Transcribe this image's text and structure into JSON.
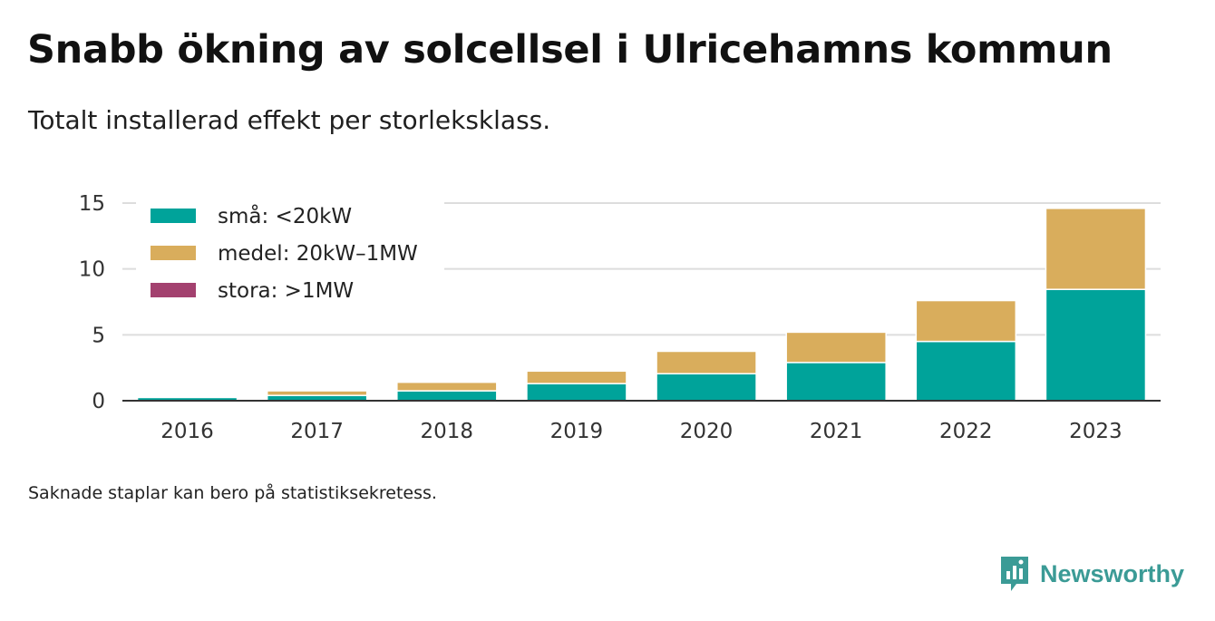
{
  "title": "Snabb ökning av solcellsel i Ulricehamns kommun",
  "subtitle": "Totalt installerad effekt per storleksklass.",
  "footnote": "Saknade staplar kan bero på statistiksekretess.",
  "brand": {
    "name": "Newsworthy",
    "logo_icon": "newsworthy-logo-icon"
  },
  "colors": {
    "sma": "#00a39a",
    "medel": "#d9ad5c",
    "stora": "#a3416f",
    "grid": "#dddddd",
    "axis": "#333333",
    "brand": "#3b9b96"
  },
  "chart_data": {
    "type": "bar",
    "stacked": true,
    "categories": [
      "2016",
      "2017",
      "2018",
      "2019",
      "2020",
      "2021",
      "2022",
      "2023"
    ],
    "series": [
      {
        "name": "små: <20kW",
        "key": "sma",
        "values": [
          0.25,
          0.4,
          0.75,
          1.3,
          2.05,
          2.9,
          4.5,
          8.45
        ]
      },
      {
        "name": "medel: 20kW–1MW",
        "key": "medel",
        "values": [
          0.05,
          0.35,
          0.65,
          0.95,
          1.7,
          2.3,
          3.1,
          6.15
        ]
      },
      {
        "name": "stora: >1MW",
        "key": "stora",
        "values": [
          0,
          0,
          0,
          0,
          0,
          0,
          0,
          0
        ]
      }
    ],
    "yticks": [
      "0",
      "5",
      "10",
      "15"
    ],
    "ylim": [
      0,
      15
    ],
    "grid": true,
    "legend_position": "top-left"
  }
}
